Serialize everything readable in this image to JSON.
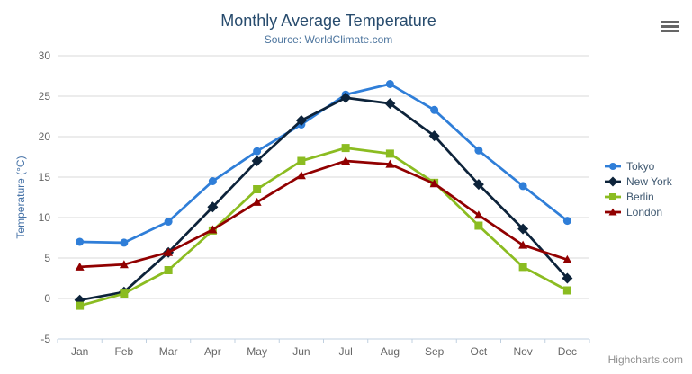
{
  "chart": {
    "context_menu_icon": "hamburger-menu-icon",
    "credits_label": "Highcharts.com"
  },
  "chart_data": {
    "type": "line",
    "title": "Monthly Average Temperature",
    "subtitle": "Source: WorldClimate.com",
    "categories": [
      "Jan",
      "Feb",
      "Mar",
      "Apr",
      "May",
      "Jun",
      "Jul",
      "Aug",
      "Sep",
      "Oct",
      "Nov",
      "Dec"
    ],
    "series": [
      {
        "name": "Tokyo",
        "color": "#2f7ed8",
        "marker": "circle",
        "values": [
          7.0,
          6.9,
          9.5,
          14.5,
          18.2,
          21.5,
          25.2,
          26.5,
          23.3,
          18.3,
          13.9,
          9.6
        ]
      },
      {
        "name": "New York",
        "color": "#0d233a",
        "marker": "diamond",
        "values": [
          -0.2,
          0.8,
          5.7,
          11.3,
          17.0,
          22.0,
          24.8,
          24.1,
          20.1,
          14.1,
          8.6,
          2.5
        ]
      },
      {
        "name": "Berlin",
        "color": "#8bbc21",
        "marker": "square",
        "values": [
          -0.9,
          0.6,
          3.5,
          8.4,
          13.5,
          17.0,
          18.6,
          17.9,
          14.3,
          9.0,
          3.9,
          1.0
        ]
      },
      {
        "name": "London",
        "color": "#910000",
        "marker": "triangle",
        "values": [
          3.9,
          4.2,
          5.7,
          8.5,
          11.9,
          15.2,
          17.0,
          16.6,
          14.2,
          10.3,
          6.6,
          4.8
        ]
      }
    ],
    "xlabel": "",
    "ylabel": "Temperature (°C)",
    "ylim": [
      -5,
      30
    ],
    "ytick_step": 5,
    "grid": true,
    "legend_position": "right",
    "colors": {
      "grid_line": "#D8D8D8",
      "axis_line": "#C0D0E0",
      "axis_label": "#666666",
      "axis_title": "#4572a7",
      "title": "#274b6d",
      "subtitle": "#4d759e",
      "legend_text": "#3E576F",
      "credit": "#909090",
      "background": "#ffffff"
    }
  }
}
